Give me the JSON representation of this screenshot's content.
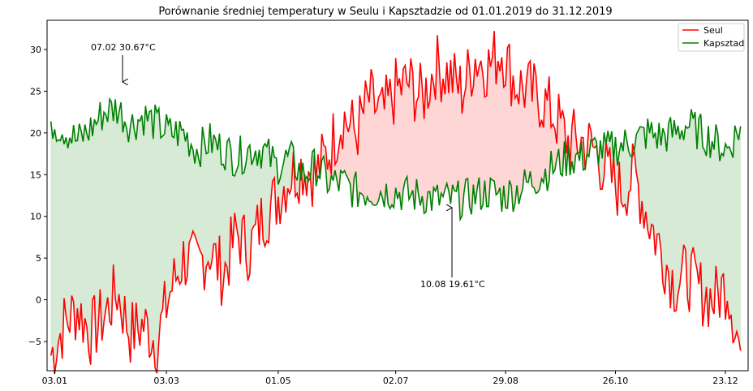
{
  "chart_data": {
    "type": "line",
    "title": "Porównanie średniej temperatury w Seulu i Kapsztadzie od 01.01.2019 do 31.12.2019",
    "xlabel": "",
    "ylabel": "",
    "x_range": [
      "2018-12-30",
      "2020-01-04"
    ],
    "ylim": [
      -8.5,
      33.5
    ],
    "y_ticks": [
      -5,
      0,
      5,
      10,
      15,
      20,
      25,
      30
    ],
    "x_ticks": [
      {
        "date": "2019-01-03",
        "label": "03.01"
      },
      {
        "date": "2019-03-03",
        "label": "03.03"
      },
      {
        "date": "2019-05-01",
        "label": "01.05"
      },
      {
        "date": "2019-07-02",
        "label": "02.07"
      },
      {
        "date": "2019-08-29",
        "label": "29.08"
      },
      {
        "date": "2019-10-26",
        "label": "26.10"
      },
      {
        "date": "2019-12-23",
        "label": "23.12"
      }
    ],
    "grid": false,
    "legend_position": "top-right",
    "sample_dates": [
      "2019-01-01",
      "2019-01-08",
      "2019-01-15",
      "2019-01-22",
      "2019-01-29",
      "2019-02-05",
      "2019-02-12",
      "2019-02-19",
      "2019-02-26",
      "2019-03-05",
      "2019-03-12",
      "2019-03-19",
      "2019-03-26",
      "2019-04-02",
      "2019-04-09",
      "2019-04-16",
      "2019-04-23",
      "2019-04-30",
      "2019-05-07",
      "2019-05-14",
      "2019-05-21",
      "2019-05-28",
      "2019-06-04",
      "2019-06-11",
      "2019-06-18",
      "2019-06-25",
      "2019-07-02",
      "2019-07-09",
      "2019-07-16",
      "2019-07-23",
      "2019-07-30",
      "2019-08-06",
      "2019-08-13",
      "2019-08-20",
      "2019-08-27",
      "2019-09-03",
      "2019-09-10",
      "2019-09-17",
      "2019-09-24",
      "2019-10-01",
      "2019-10-08",
      "2019-10-15",
      "2019-10-22",
      "2019-10-29",
      "2019-11-05",
      "2019-11-12",
      "2019-11-19",
      "2019-11-26",
      "2019-12-03",
      "2019-12-10",
      "2019-12-17",
      "2019-12-24",
      "2019-12-31"
    ],
    "series": [
      {
        "name": "Seul",
        "color": "#ff0000",
        "values": [
          -6.7,
          -3,
          -1,
          -4,
          -2,
          1,
          -4,
          -3,
          -5,
          1,
          5,
          4,
          6,
          3,
          8,
          6,
          10,
          12,
          15,
          16,
          15,
          18,
          22,
          20,
          24,
          22,
          25,
          26,
          24,
          28,
          27,
          25,
          29,
          28,
          30,
          26,
          25,
          24,
          22,
          19,
          19,
          18,
          15,
          13,
          15,
          10,
          6,
          2,
          3,
          1,
          0,
          2,
          -6.1
        ]
      },
      {
        "name": "Kapsztad",
        "color": "#008000",
        "values": [
          21.4,
          20.5,
          19,
          20.5,
          22.5,
          23,
          21,
          22,
          21,
          20,
          20,
          18,
          19,
          18,
          17,
          18,
          18,
          16,
          17,
          15,
          16,
          14,
          14,
          13,
          13,
          13,
          13,
          12.5,
          12.5,
          12,
          12,
          12,
          12.5,
          13,
          12.5,
          13,
          14,
          15,
          16,
          17,
          17,
          18,
          18,
          18.5,
          19,
          20,
          19.5,
          20,
          21,
          20,
          19,
          18,
          20.8
        ]
      }
    ],
    "annotations": [
      {
        "date_label": "07.02",
        "value_label": "30.67°C"
      },
      {
        "date_label": "10.08",
        "value_label": "19.61°C"
      }
    ],
    "fill_colors": {
      "cape_above": "#d6ead6",
      "seoul_above": "#ffd6d6"
    }
  }
}
